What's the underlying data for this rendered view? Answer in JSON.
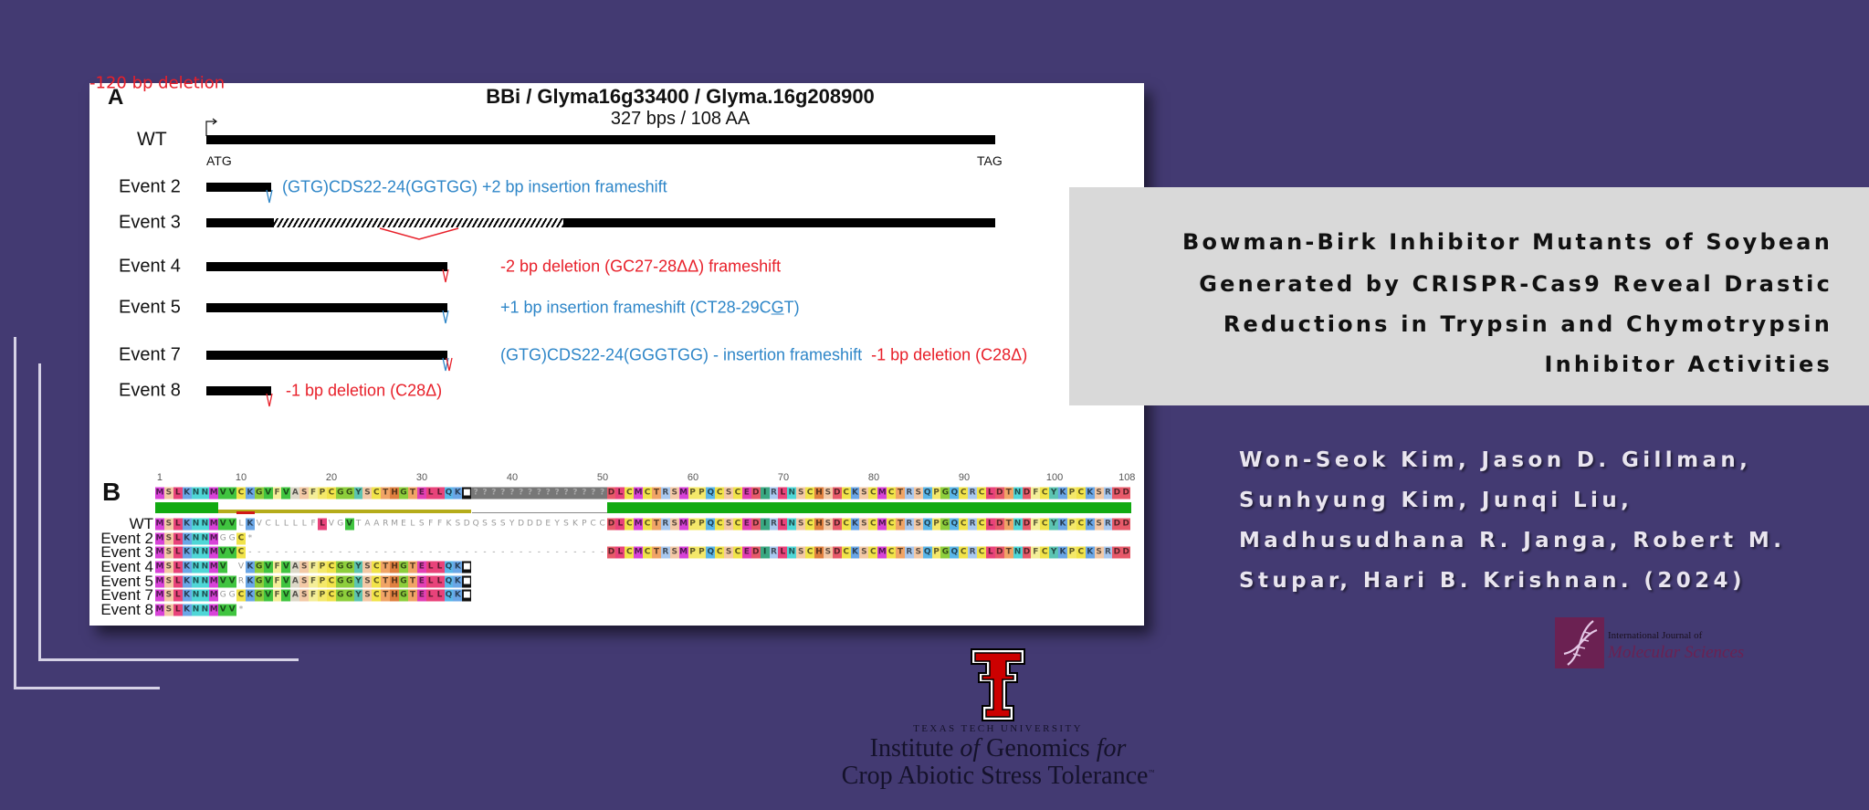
{
  "panel_a": {
    "label": "A",
    "title": "BBi / Glyma16g33400 / Glyma.16g208900",
    "subtitle": "327 bps / 108 AA",
    "cds_length_bp": 327,
    "wt": {
      "label": "WT",
      "start_codon": "ATG",
      "stop_codon": "TAG"
    },
    "events": [
      {
        "label": "Event 2",
        "end_bp": 27,
        "markers": [
          {
            "color": "#2e86c8"
          }
        ],
        "annotations": [
          {
            "text": "(GTG)CDS22-24(GGTGG) +2 bp insertion frameshift",
            "color": "#2e86c8"
          }
        ]
      },
      {
        "label": "Event 3",
        "end_bp": 327,
        "deletion_bp": [
          28,
          148
        ],
        "deletion_label": "-120 bp deletion",
        "deletion_color": "#e8202a",
        "markers": [],
        "annotations": []
      },
      {
        "label": "Event 4",
        "end_bp": 100,
        "markers": [
          {
            "color": "#e8202a"
          }
        ],
        "annotations": [
          {
            "text": "-2 bp deletion (GC27-28ΔΔ) frameshift",
            "color": "#e8202a"
          }
        ]
      },
      {
        "label": "Event 5",
        "end_bp": 100,
        "markers": [
          {
            "color": "#2e86c8"
          }
        ],
        "annotations": [
          {
            "text": "+1 bp insertion frameshift (CT28-29C",
            "color": "#2e86c8"
          },
          {
            "text": "G",
            "color": "#2e86c8",
            "underline": true
          },
          {
            "text": "T)",
            "color": "#2e86c8"
          }
        ]
      },
      {
        "label": "Event 7",
        "end_bp": 100,
        "markers": [
          {
            "color": "#2e86c8"
          },
          {
            "color": "#e8202a"
          }
        ],
        "annotations": [
          {
            "text": "(GTG)CDS22-24(GGGTGG) - insertion frameshift",
            "color": "#2e86c8"
          },
          {
            "text": "  -1 bp deletion (C28Δ)",
            "color": "#e8202a"
          }
        ]
      },
      {
        "label": "Event 8",
        "end_bp": 27,
        "markers": [
          {
            "color": "#e8202a"
          }
        ],
        "annotations": [
          {
            "text": "-1 bp deletion (C28Δ)",
            "color": "#e8202a"
          }
        ]
      }
    ]
  },
  "panel_b": {
    "label": "B",
    "ticks": [
      1,
      10,
      20,
      30,
      40,
      50,
      60,
      70,
      80,
      90,
      100,
      108
    ],
    "consensus": "MSLKNNMVVCKGVFVASFPCGGYSCTHGTELLQK■???????????????DLCMCTRSMPPQCSCEDIRLNSCHSDCKSCMCTRSQPGQCRCLDTNDFCYKPCKSRDD",
    "identity_track": [
      {
        "from": 1,
        "to": 7,
        "level": 1.0,
        "color": "#11aa11"
      },
      {
        "from": 8,
        "to": 35,
        "level": 0.35,
        "color": "#b5ac1a"
      },
      {
        "from": 36,
        "to": 50,
        "level": 0.0,
        "color": "#888888"
      },
      {
        "from": 51,
        "to": 108,
        "level": 1.0,
        "color": "#11aa11"
      }
    ],
    "rows": [
      {
        "label": "WT",
        "sequence": "MSLKNNMVVLKVCLLLLFLVGVTAARMELSFFKSDQSSSYDDDEYSKPCCDLCMCTRSMPPQCSCEDIRLNSCHSDCKSCMCTRSQPGQCRCLDTNDFCYKPCKSRDD",
        "unshaded": [
          10,
          12,
          13,
          14,
          15,
          16,
          17,
          18,
          20,
          21,
          23,
          24,
          25,
          26,
          27,
          28,
          29,
          30,
          31,
          32,
          33,
          34,
          35,
          36,
          37,
          38,
          39,
          40,
          41,
          42,
          43,
          44,
          45,
          46,
          47,
          48,
          49,
          50
        ]
      },
      {
        "label": "Event 2",
        "sequence": "MSLKNNMGGC*",
        "unshaded": [
          8,
          9
        ]
      },
      {
        "label": "Event 3",
        "sequence": "MSLKNNMVVC----------------------------------------DLCMCTRSMPPQCSCEDIRLNSCHSDCKSCMCTRSQPGQCRCLDTNDFCYKPCKSRDD",
        "unshaded": []
      },
      {
        "label": "Event 4",
        "sequence": "MSLKNNMV VKGVFVASFPCGGYSCTHGTELLQK■",
        "unshaded": [
          10
        ]
      },
      {
        "label": "Event 5",
        "sequence": "MSLKNNMVVRKGVFVASFPCGGYSCTHGTELLQK■",
        "unshaded": [
          10
        ]
      },
      {
        "label": "Event 7",
        "sequence": "MSLKNNMGGCKGVFVASFPCGGYSCTHGTELLQK■",
        "unshaded": [
          8,
          9
        ]
      },
      {
        "label": "Event 8",
        "sequence": "MSLKNNMVV*",
        "unshaded": []
      }
    ],
    "residue_colors": {
      "M": "#d843d8",
      "S": "#f3c9a6",
      "L": "#e8437a",
      "K": "#6aa6e6",
      "N": "#4fd6d6",
      "V": "#40c440",
      "C": "#f1e34a",
      "G": "#8dce3c",
      "F": "#f4ee98",
      "A": "#dcd8c8",
      "P": "#f4e86a",
      "Y": "#5cc4b2",
      "T": "#f0a466",
      "H": "#df8040",
      "E": "#e23fb4",
      "Q": "#5ab6e8",
      "D": "#e75a6a",
      "R": "#a9c8ef",
      "I": "#3aa882"
    }
  },
  "title": {
    "lines": [
      "Bowman-Birk Inhibitor Mutants of Soybean",
      "Generated by CRISPR-Cas9 Reveal Drastic",
      "Reductions in Trypsin and Chymotrypsin",
      "Inhibitor Activities"
    ]
  },
  "authors": {
    "lines": [
      "Won-Seok Kim, Jason D. Gillman,",
      "Sunhyung Kim, Junqi Liu,",
      "Madhusudhana R. Janga, Robert M.",
      "Stupar, Hari B. Krishnan.  (2024)"
    ]
  },
  "journal_logo": {
    "line1": "International Journal of",
    "line2": "Molecular Sciences",
    "color": "#6b2152"
  },
  "institute_logo": {
    "university": "TEXAS TECH UNIVERSITY",
    "line1_a": "Institute ",
    "line1_b": "of",
    "line1_c": " Genomics ",
    "line1_d": "for",
    "line2": "Crop Abiotic Stress Tolerance",
    "tm": "™"
  },
  "colors": {
    "background": "#433a72",
    "title_box": "#d9d9d9",
    "ttu_red": "#cc0000"
  }
}
